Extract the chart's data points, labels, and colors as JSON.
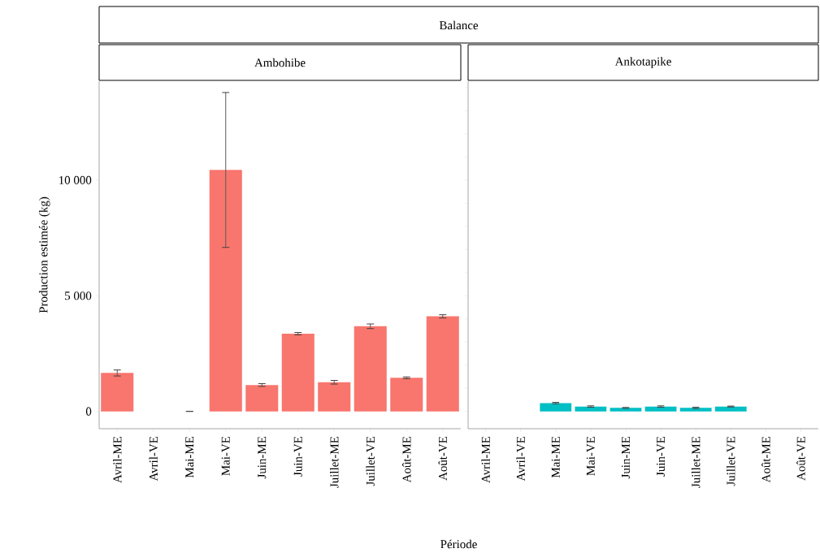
{
  "chart_data": [
    {
      "type": "bar",
      "subtitle": "Balance",
      "title": "Ambohibe",
      "xlabel": "Période",
      "ylabel": "Production estimée (kg)",
      "categories": [
        "Avril-ME",
        "Avril-VE",
        "Mai-ME",
        "Mai-VE",
        "Juin-ME",
        "Juin-VE",
        "Juillet-ME",
        "Juillet-VE",
        "Août-ME",
        "Août-VE"
      ],
      "values": [
        1660,
        null,
        0,
        10440,
        1140,
        3360,
        1260,
        3680,
        1450,
        4110
      ],
      "errors": [
        130,
        null,
        0,
        3350,
        60,
        50,
        80,
        100,
        40,
        70
      ],
      "color": "#f8766d",
      "ylim": [
        -750,
        14280
      ],
      "yticks": [
        0,
        {
          "value": 5000,
          "label": "5 000"
        },
        {
          "value": 10000,
          "label": "10 000"
        }
      ]
    },
    {
      "type": "bar",
      "title": "Ankotapike",
      "categories": [
        "Avril-ME",
        "Avril-VE",
        "Mai-ME",
        "Mai-VE",
        "Juin-ME",
        "Juin-VE",
        "Juillet-ME",
        "Juillet-VE",
        "Août-ME",
        "Août-VE"
      ],
      "values": [
        null,
        null,
        360,
        210,
        150,
        210,
        150,
        210,
        null,
        null
      ],
      "errors": [
        null,
        null,
        30,
        30,
        20,
        30,
        30,
        20,
        null,
        null
      ],
      "color": "#00bfc4",
      "ylim": [
        -750,
        14280
      ],
      "tick_labels": "x"
    }
  ]
}
